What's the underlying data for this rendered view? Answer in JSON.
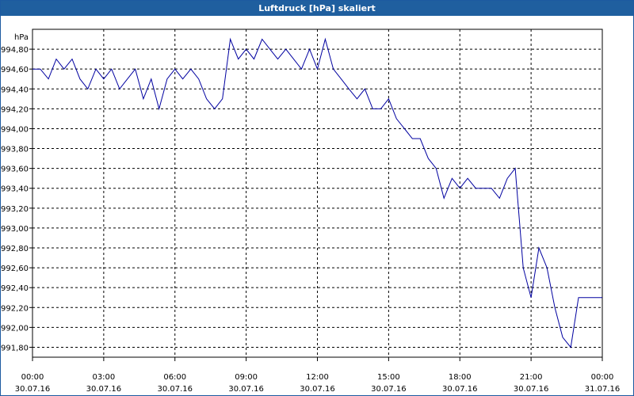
{
  "window": {
    "title": "Luftdruck [hPa] skaliert"
  },
  "chart_data": {
    "type": "line",
    "title": "Luftdruck [hPa] skaliert",
    "ylabel": "hPa",
    "xlabel": "",
    "ylim": [
      991.7,
      995.0
    ],
    "grid": true,
    "y_ticks": [
      991.8,
      992.0,
      992.2,
      992.4,
      992.6,
      992.8,
      993.0,
      993.2,
      993.4,
      993.6,
      993.8,
      994.0,
      994.2,
      994.4,
      994.6,
      994.8
    ],
    "y_tick_labels": [
      "991,80",
      "992,00",
      "992,20",
      "992,40",
      "992,60",
      "992,80",
      "993,00",
      "993,20",
      "993,40",
      "993,60",
      "993,80",
      "994,00",
      "994,20",
      "994,40",
      "994,60",
      "994,80"
    ],
    "x_range_hours": [
      0,
      24
    ],
    "x_ticks": [
      {
        "time": "00:00",
        "date": "30.07.16"
      },
      {
        "time": "03:00",
        "date": "30.07.16"
      },
      {
        "time": "06:00",
        "date": "30.07.16"
      },
      {
        "time": "09:00",
        "date": "30.07.16"
      },
      {
        "time": "12:00",
        "date": "30.07.16"
      },
      {
        "time": "15:00",
        "date": "30.07.16"
      },
      {
        "time": "18:00",
        "date": "30.07.16"
      },
      {
        "time": "21:00",
        "date": "30.07.16"
      },
      {
        "time": "00:00",
        "date": "31.07.16"
      }
    ],
    "series": [
      {
        "color": "#0000a0",
        "x": [
          0,
          0.33,
          0.67,
          1.0,
          1.33,
          1.67,
          2.0,
          2.33,
          2.67,
          3.0,
          3.33,
          3.67,
          4.0,
          4.33,
          4.67,
          5.0,
          5.33,
          5.67,
          6.0,
          6.33,
          6.67,
          7.0,
          7.33,
          7.67,
          8.0,
          8.33,
          8.67,
          9.0,
          9.33,
          9.67,
          10.0,
          10.33,
          10.67,
          11.0,
          11.33,
          11.67,
          12.0,
          12.33,
          12.67,
          13.0,
          13.33,
          13.67,
          14.0,
          14.33,
          14.67,
          15.0,
          15.33,
          15.67,
          16.0,
          16.33,
          16.67,
          17.0,
          17.33,
          17.67,
          18.0,
          18.33,
          18.67,
          19.0,
          19.33,
          19.67,
          20.0,
          20.33,
          20.67,
          21.0,
          21.33,
          21.67,
          22.0,
          22.33,
          22.67,
          23.0,
          23.33,
          23.67,
          24.0
        ],
        "y": [
          994.6,
          994.6,
          994.5,
          994.7,
          994.6,
          994.7,
          994.5,
          994.4,
          994.6,
          994.5,
          994.6,
          994.4,
          994.5,
          994.6,
          994.3,
          994.5,
          994.2,
          994.5,
          994.6,
          994.5,
          994.6,
          994.5,
          994.3,
          994.2,
          994.3,
          994.9,
          994.7,
          994.8,
          994.7,
          994.9,
          994.8,
          994.7,
          994.8,
          994.7,
          994.6,
          994.8,
          994.6,
          994.9,
          994.6,
          994.5,
          994.4,
          994.3,
          994.4,
          994.2,
          994.2,
          994.3,
          994.1,
          994.0,
          993.9,
          993.9,
          993.7,
          993.6,
          993.3,
          993.5,
          993.4,
          993.5,
          993.4,
          993.4,
          993.4,
          993.3,
          993.5,
          993.6,
          992.6,
          992.3,
          992.8,
          992.6,
          992.2,
          991.9,
          991.8,
          992.3,
          992.3,
          992.3,
          992.3
        ]
      }
    ]
  }
}
